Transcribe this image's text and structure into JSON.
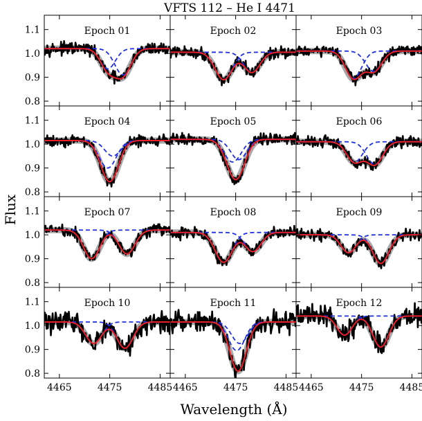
{
  "figure": {
    "title": "VFTS 112 – He I    4471",
    "xlabel": "Wavelength (Å)",
    "ylabel": "Flux"
  },
  "chart_data": {
    "type": "line",
    "grid": {
      "rows": 4,
      "cols": 3,
      "shared_x": true,
      "shared_y": true
    },
    "xlim": [
      4462,
      4487
    ],
    "ylim": [
      0.78,
      1.16
    ],
    "xticks": [
      4465,
      4475,
      4485
    ],
    "yticks": [
      0.8,
      0.9,
      1.0,
      1.1
    ],
    "xtick_labels": [
      "4465",
      "4475",
      "4485"
    ],
    "ytick_labels": [
      "0.8",
      "0.9",
      "1.0",
      "1.1"
    ],
    "colors": {
      "observed": "#000000",
      "model_band": "#a9a9a9",
      "fit": "#e8202a",
      "component": "#1f2fe0"
    },
    "panels": [
      {
        "label": "Epoch 01",
        "continuum": 1.02,
        "lines": [
          {
            "center": 4474.6,
            "depth": 0.085,
            "sigma": 1.5
          },
          {
            "center": 4477.6,
            "depth": 0.11,
            "sigma": 1.6
          }
        ]
      },
      {
        "label": "Epoch 02",
        "continuum": 1.005,
        "lines": [
          {
            "center": 4472.6,
            "depth": 0.115,
            "sigma": 1.7
          },
          {
            "center": 4478.2,
            "depth": 0.085,
            "sigma": 1.6
          }
        ]
      },
      {
        "label": "Epoch 03",
        "continuum": 1.01,
        "lines": [
          {
            "center": 4473.4,
            "depth": 0.115,
            "sigma": 1.6
          },
          {
            "center": 4477.4,
            "depth": 0.085,
            "sigma": 1.6
          }
        ]
      },
      {
        "label": "Epoch 04",
        "continuum": 1.015,
        "lines": [
          {
            "center": 4474.6,
            "depth": 0.115,
            "sigma": 1.7
          },
          {
            "center": 4475.6,
            "depth": 0.065,
            "sigma": 1.6
          }
        ]
      },
      {
        "label": "Epoch 05",
        "continuum": 1.02,
        "lines": [
          {
            "center": 4474.4,
            "depth": 0.095,
            "sigma": 1.7
          },
          {
            "center": 4475.6,
            "depth": 0.085,
            "sigma": 1.6
          }
        ]
      },
      {
        "label": "Epoch 06",
        "continuum": 1.01,
        "lines": [
          {
            "center": 4473.6,
            "depth": 0.085,
            "sigma": 1.6
          },
          {
            "center": 4477.6,
            "depth": 0.095,
            "sigma": 1.6
          }
        ]
      },
      {
        "label": "Epoch 07",
        "continuum": 1.02,
        "lines": [
          {
            "center": 4471.4,
            "depth": 0.12,
            "sigma": 1.6
          },
          {
            "center": 4478.4,
            "depth": 0.1,
            "sigma": 1.6
          }
        ]
      },
      {
        "label": "Epoch 08",
        "continuum": 1.01,
        "lines": [
          {
            "center": 4472.6,
            "depth": 0.125,
            "sigma": 1.7
          },
          {
            "center": 4478.4,
            "depth": 0.08,
            "sigma": 1.6
          }
        ]
      },
      {
        "label": "Epoch 09",
        "continuum": 1.0,
        "lines": [
          {
            "center": 4472.4,
            "depth": 0.075,
            "sigma": 1.5
          },
          {
            "center": 4478.8,
            "depth": 0.12,
            "sigma": 1.6
          }
        ]
      },
      {
        "label": "Epoch 10",
        "continuum": 1.015,
        "lines": [
          {
            "center": 4471.8,
            "depth": 0.09,
            "sigma": 1.6
          },
          {
            "center": 4478.0,
            "depth": 0.11,
            "sigma": 1.6
          }
        ]
      },
      {
        "label": "Epoch 11",
        "continuum": 1.015,
        "lines": [
          {
            "center": 4475.2,
            "depth": 0.12,
            "sigma": 1.6
          },
          {
            "center": 4475.8,
            "depth": 0.09,
            "sigma": 1.6
          }
        ]
      },
      {
        "label": "Epoch 12",
        "continuum": 1.04,
        "lines": [
          {
            "center": 4471.6,
            "depth": 0.08,
            "sigma": 1.5
          },
          {
            "center": 4478.8,
            "depth": 0.13,
            "sigma": 1.6
          }
        ]
      }
    ]
  }
}
